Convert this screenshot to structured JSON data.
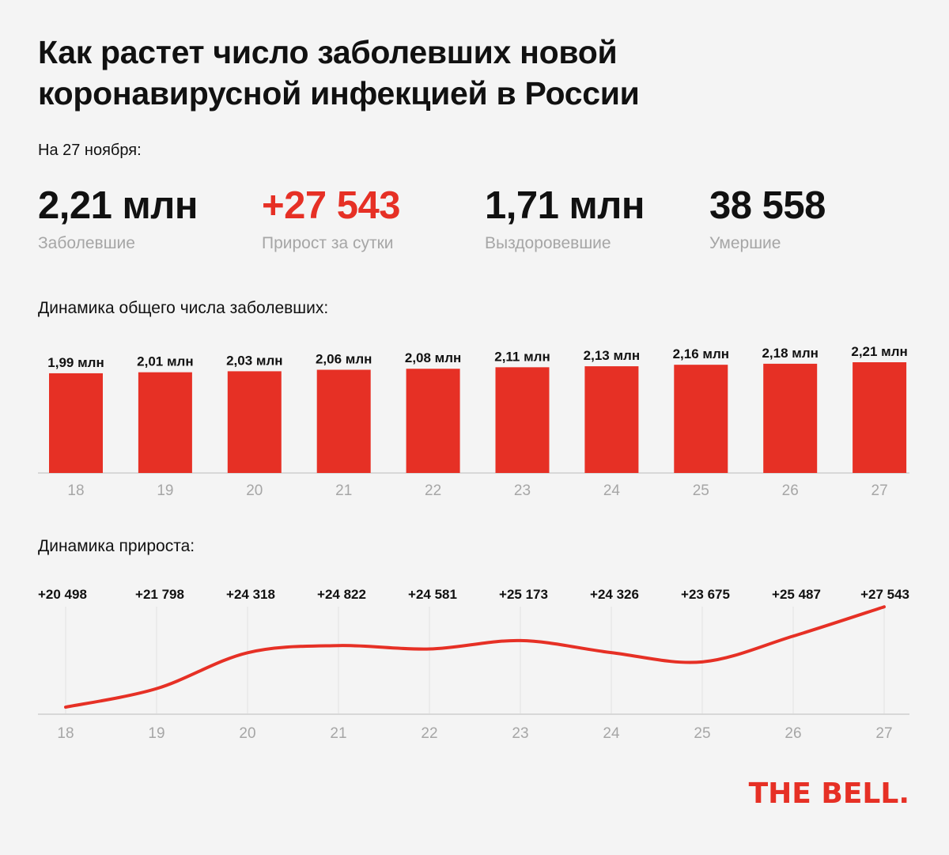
{
  "title": "Как растет число заболевших новой коронавирусной инфекцией в России",
  "date_label": "На 27 ноября:",
  "stats": [
    {
      "value": "2,21 млн",
      "label": "Заболевшие"
    },
    {
      "value": "+27 543",
      "label": "Прирост за сутки"
    },
    {
      "value": "1,71 млн",
      "label": "Выздоровевшие"
    },
    {
      "value": "38 558",
      "label": "Умершие"
    }
  ],
  "colors": {
    "accent": "#e63025",
    "muted": "#a6a6a6",
    "background": "#f4f4f4",
    "text": "#111111"
  },
  "chart_data": [
    {
      "type": "bar",
      "title": "Динамика общего числа заболевших:",
      "categories": [
        "18",
        "19",
        "20",
        "21",
        "22",
        "23",
        "24",
        "25",
        "26",
        "27"
      ],
      "values": [
        1.99,
        2.01,
        2.03,
        2.06,
        2.08,
        2.11,
        2.13,
        2.16,
        2.18,
        2.21
      ],
      "value_labels": [
        "1,99 млн",
        "2,01 млн",
        "2,03 млн",
        "2,06 млн",
        "2,08 млн",
        "2,11 млн",
        "2,13 млн",
        "2,16 млн",
        "2,18 млн",
        "2,21 млн"
      ],
      "ylim": [
        0,
        2.21
      ],
      "grid": false,
      "color": "#e63025"
    },
    {
      "type": "line",
      "title": "Динамика прироста:",
      "x": [
        "18",
        "19",
        "20",
        "21",
        "22",
        "23",
        "24",
        "25",
        "26",
        "27"
      ],
      "values": [
        20498,
        21798,
        24318,
        24822,
        24581,
        25173,
        24326,
        23675,
        25487,
        27543
      ],
      "value_labels": [
        "+20 498",
        "+21 798",
        "+24 318",
        "+24 822",
        "+24 581",
        "+25 173",
        "+24 326",
        "+23 675",
        "+25 487",
        "+27 543"
      ],
      "ylim": [
        20000,
        28000
      ],
      "grid": true,
      "color": "#e63025"
    }
  ],
  "logo": "THE BELL."
}
